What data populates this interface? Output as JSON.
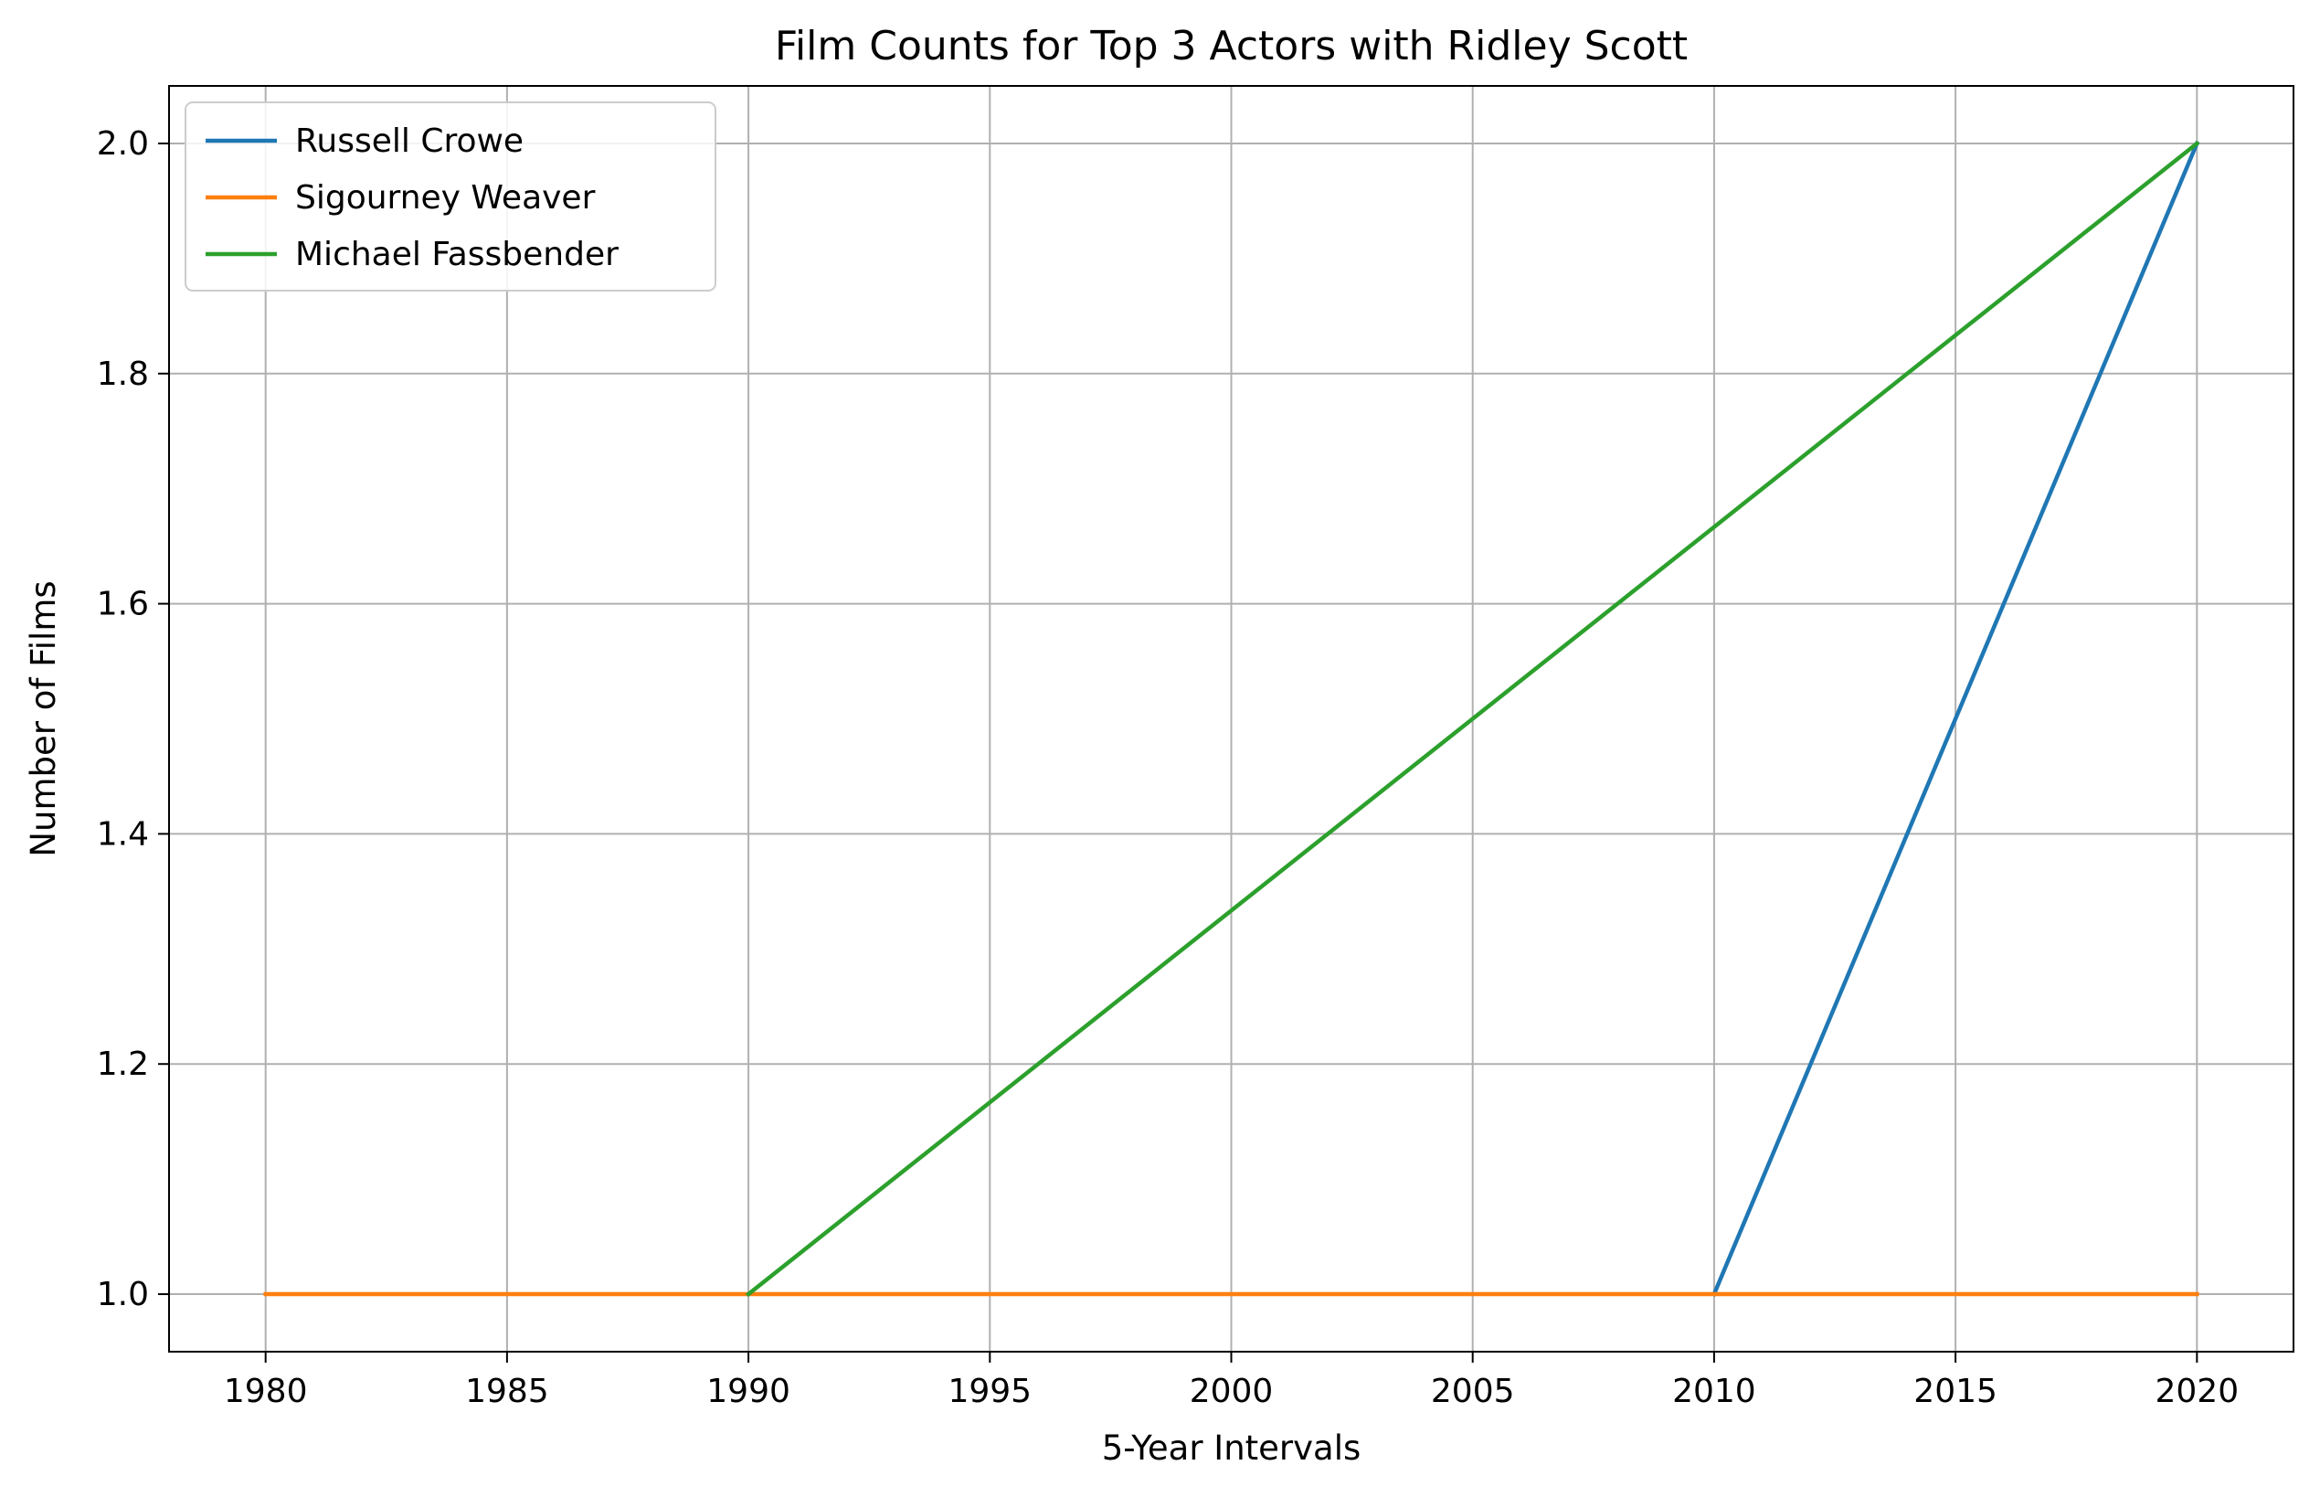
{
  "chart_data": {
    "type": "line",
    "title": "Film Counts for Top 3 Actors with Ridley Scott",
    "xlabel": "5-Year Intervals",
    "ylabel": "Number of Films",
    "x_ticks": [
      1980,
      1985,
      1990,
      1995,
      2000,
      2005,
      2010,
      2015,
      2020
    ],
    "y_ticks": [
      "1.0",
      "1.2",
      "1.4",
      "1.6",
      "1.8",
      "2.0"
    ],
    "xlim": [
      1978,
      2022
    ],
    "ylim": [
      0.95,
      2.05
    ],
    "grid": true,
    "legend_position": "top-left",
    "series": [
      {
        "name": "Russell Crowe",
        "color": "#1f77b4",
        "x": [
          2010,
          2020
        ],
        "y": [
          1,
          2
        ]
      },
      {
        "name": "Sigourney Weaver",
        "color": "#ff7f0e",
        "x": [
          1980,
          2020
        ],
        "y": [
          1,
          1
        ]
      },
      {
        "name": "Michael Fassbender",
        "color": "#2ca02c",
        "x": [
          1990,
          2020
        ],
        "y": [
          1,
          2
        ]
      }
    ]
  }
}
